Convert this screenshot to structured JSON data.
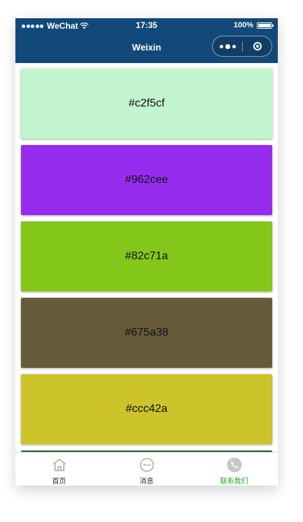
{
  "status_bar": {
    "carrier": "WeChat",
    "time": "17:35",
    "battery": "100%"
  },
  "nav": {
    "title": "Weixin"
  },
  "colors": {
    "nav_background": "#13497a",
    "active_tab": "#1aad19"
  },
  "swatches": [
    {
      "label": "#c2f5cf",
      "color": "#c2f5cf"
    },
    {
      "label": "#962cee",
      "color": "#962cee"
    },
    {
      "label": "#82c71a",
      "color": "#82c71a"
    },
    {
      "label": "#675a38",
      "color": "#675a38"
    },
    {
      "label": "#ccc42a",
      "color": "#ccc42a"
    },
    {
      "label": "",
      "color": "#1f5a2a"
    }
  ],
  "tabbar": {
    "items": [
      {
        "label": "首页",
        "icon": "home-icon",
        "active": false
      },
      {
        "label": "消息",
        "icon": "message-icon",
        "active": false
      },
      {
        "label": "联系我们",
        "icon": "phone-icon",
        "active": true
      }
    ]
  }
}
